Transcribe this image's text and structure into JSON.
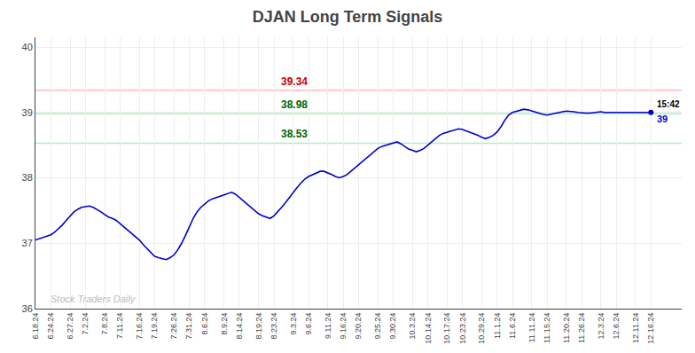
{
  "chart_data": {
    "type": "line",
    "title": "DJAN Long Term Signals",
    "color": "#0000cc",
    "ylim": [
      36,
      40.15
    ],
    "yticks": [
      36,
      37,
      38,
      39,
      40
    ],
    "grid": true,
    "categories": [
      "6.18.24",
      null,
      null,
      null,
      "6.24.24",
      null,
      null,
      null,
      null,
      "6.27.24",
      null,
      null,
      null,
      "7.2.24",
      null,
      null,
      null,
      null,
      "7.8.24",
      null,
      null,
      null,
      "7.11.24",
      null,
      null,
      null,
      null,
      "7.16.24",
      null,
      null,
      null,
      "7.19.24",
      null,
      null,
      null,
      null,
      "7.26.24",
      null,
      null,
      null,
      "7.31.24",
      null,
      null,
      null,
      "8.6.24",
      null,
      null,
      null,
      null,
      "8.9.24",
      null,
      null,
      null,
      "8.14.24",
      null,
      null,
      null,
      null,
      "8.19.24",
      null,
      null,
      null,
      "8.23.24",
      null,
      null,
      null,
      null,
      "9.3.24",
      null,
      null,
      null,
      "9.6.24",
      null,
      null,
      null,
      null,
      "9.11.24",
      null,
      null,
      null,
      "9.16.24",
      null,
      null,
      null,
      "9.20.24",
      null,
      null,
      null,
      null,
      "9.25.24",
      null,
      null,
      null,
      "9.30.24",
      null,
      null,
      null,
      null,
      "10.3.24",
      null,
      null,
      null,
      "10.14.24",
      null,
      null,
      null,
      null,
      "10.17.24",
      null,
      null,
      null,
      "10.23.24",
      null,
      null,
      null,
      null,
      "10.29.24",
      null,
      null,
      null,
      "11.1.24",
      null,
      null,
      null,
      "11.6.24",
      null,
      null,
      null,
      null,
      "11.11.24",
      null,
      null,
      null,
      "11.15.24",
      null,
      null,
      null,
      null,
      "11.20.24",
      null,
      null,
      null,
      "11.26.24",
      null,
      null,
      null,
      null,
      "12.3.24",
      null,
      null,
      null,
      "12.6.24",
      null,
      null,
      null,
      null,
      "12.11.24",
      null,
      null,
      null,
      "12.16.24"
    ],
    "values": [
      37.05,
      37.07,
      37.08,
      37.1,
      37.13,
      37.17,
      37.22,
      37.28,
      37.35,
      37.42,
      37.48,
      37.52,
      37.55,
      37.56,
      37.57,
      37.55,
      37.52,
      37.48,
      37.44,
      37.4,
      37.38,
      37.35,
      37.3,
      37.25,
      37.2,
      37.15,
      37.1,
      37.05,
      36.98,
      36.92,
      36.85,
      36.8,
      36.78,
      36.76,
      36.75,
      36.78,
      36.82,
      36.9,
      37.0,
      37.12,
      37.25,
      37.38,
      37.48,
      37.55,
      37.6,
      37.65,
      37.68,
      37.7,
      37.72,
      37.74,
      37.76,
      37.78,
      37.75,
      37.7,
      37.65,
      37.6,
      37.55,
      37.5,
      37.45,
      37.42,
      37.4,
      37.38,
      37.42,
      37.48,
      37.55,
      37.62,
      37.7,
      37.78,
      37.85,
      37.92,
      37.98,
      38.02,
      38.05,
      38.08,
      38.1,
      38.1,
      38.08,
      38.05,
      38.02,
      38.0,
      38.02,
      38.05,
      38.1,
      38.15,
      38.2,
      38.25,
      38.3,
      38.35,
      38.4,
      38.45,
      38.48,
      38.5,
      38.52,
      38.54,
      38.55,
      38.52,
      38.48,
      38.44,
      38.42,
      38.4,
      38.42,
      38.45,
      38.5,
      38.55,
      38.6,
      38.65,
      38.68,
      38.7,
      38.72,
      38.74,
      38.75,
      38.74,
      38.72,
      38.7,
      38.68,
      38.65,
      38.62,
      38.6,
      38.62,
      38.65,
      38.7,
      38.78,
      38.88,
      38.96,
      39.0,
      39.02,
      39.04,
      39.05,
      39.04,
      39.02,
      39.0,
      38.98,
      38.97,
      38.96,
      38.97,
      38.98,
      39.0,
      39.01,
      39.02,
      39.02,
      39.01,
      39.0,
      38.99,
      38.99,
      38.99,
      39.0,
      39.01,
      39.01,
      39.0,
      39.0,
      39.0,
      39.0,
      39.0,
      39.0,
      39.0,
      39.0,
      39.0,
      39.0,
      39.0,
      39.0,
      39.0
    ],
    "reference_lines": [
      {
        "value": 39.34,
        "label": "39.34",
        "color": "#ffbbbb",
        "label_color": "#cc0000"
      },
      {
        "value": 38.98,
        "label": "38.98",
        "color": "#aaeebb",
        "label_color": "#006600"
      },
      {
        "value": 38.53,
        "label": "38.53",
        "color": "#aaeebb",
        "label_color": "#006600"
      }
    ],
    "annotations": [
      {
        "text": "15:42",
        "color": "#000000"
      },
      {
        "text": "39",
        "color": "#0000cc"
      }
    ],
    "watermark": {
      "text": "Stock Traders Daily",
      "color": "#bbbbbb"
    }
  }
}
